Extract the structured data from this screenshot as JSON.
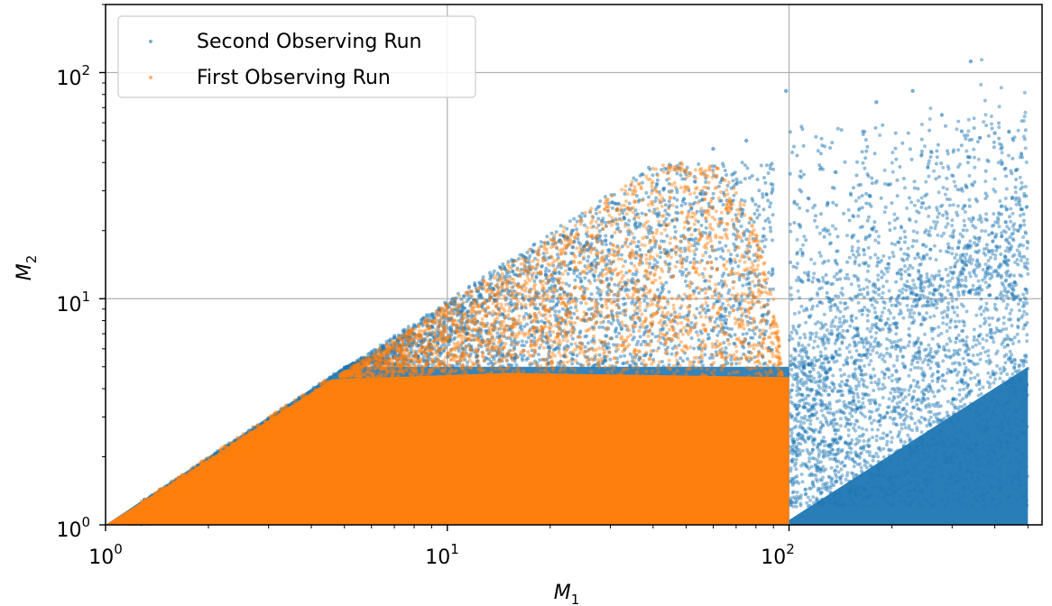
{
  "chart_data": {
    "type": "scatter",
    "x_scale": "log",
    "y_scale": "log",
    "xlim": [
      1,
      550
    ],
    "ylim": [
      1,
      200
    ],
    "grid": true,
    "legend_position": "top-left",
    "xlabel": {
      "base": "M",
      "sub": "1"
    },
    "ylabel": {
      "base": "M",
      "sub": "2"
    },
    "x_ticks": [
      {
        "value": 1,
        "base": "10",
        "exp": "0"
      },
      {
        "value": 10,
        "base": "10",
        "exp": "1"
      },
      {
        "value": 100,
        "base": "10",
        "exp": "2"
      }
    ],
    "y_ticks": [
      {
        "value": 1,
        "base": "10",
        "exp": "0"
      },
      {
        "value": 10,
        "base": "10",
        "exp": "1"
      },
      {
        "value": 100,
        "base": "10",
        "exp": "2"
      }
    ],
    "series": [
      {
        "name": "Second Observing Run",
        "color": "#1f77b4",
        "alpha": 0.5,
        "sampling": {
          "m1_range": [
            1,
            500
          ],
          "mass_ratio_min_m1_below_100": 0.0,
          "m2_upper_branch": "m2 <= m1 and m2 >= 5 for m1 >= 5",
          "m2_lower_branch": "m2 <= min(m1, 3) for m1 < 5",
          "m1_above_100": "m2 between 1 and ~m1/5..m1/2 with sparse outliers up to ~110"
        },
        "outliers": [
          {
            "x": 98,
            "y": 83
          },
          {
            "x": 340,
            "y": 112
          },
          {
            "x": 230,
            "y": 83
          },
          {
            "x": 180,
            "y": 74
          },
          {
            "x": 280,
            "y": 65
          },
          {
            "x": 320,
            "y": 55
          },
          {
            "x": 400,
            "y": 54
          },
          {
            "x": 450,
            "y": 28
          },
          {
            "x": 60,
            "y": 46
          },
          {
            "x": 75,
            "y": 50
          }
        ]
      },
      {
        "name": "First Observing Run",
        "color": "#ff7f0e",
        "alpha": 0.5,
        "sampling": {
          "m1_range": [
            1,
            100
          ],
          "m2_range": [
            1,
            80
          ],
          "constraint": "m2 <= m1, m1 + m2 <= 100, dense fill for m2 < 5"
        },
        "outliers": [
          {
            "x": 45,
            "y": 38
          },
          {
            "x": 50,
            "y": 37
          },
          {
            "x": 78,
            "y": 21
          },
          {
            "x": 80,
            "y": 18
          }
        ]
      }
    ]
  }
}
